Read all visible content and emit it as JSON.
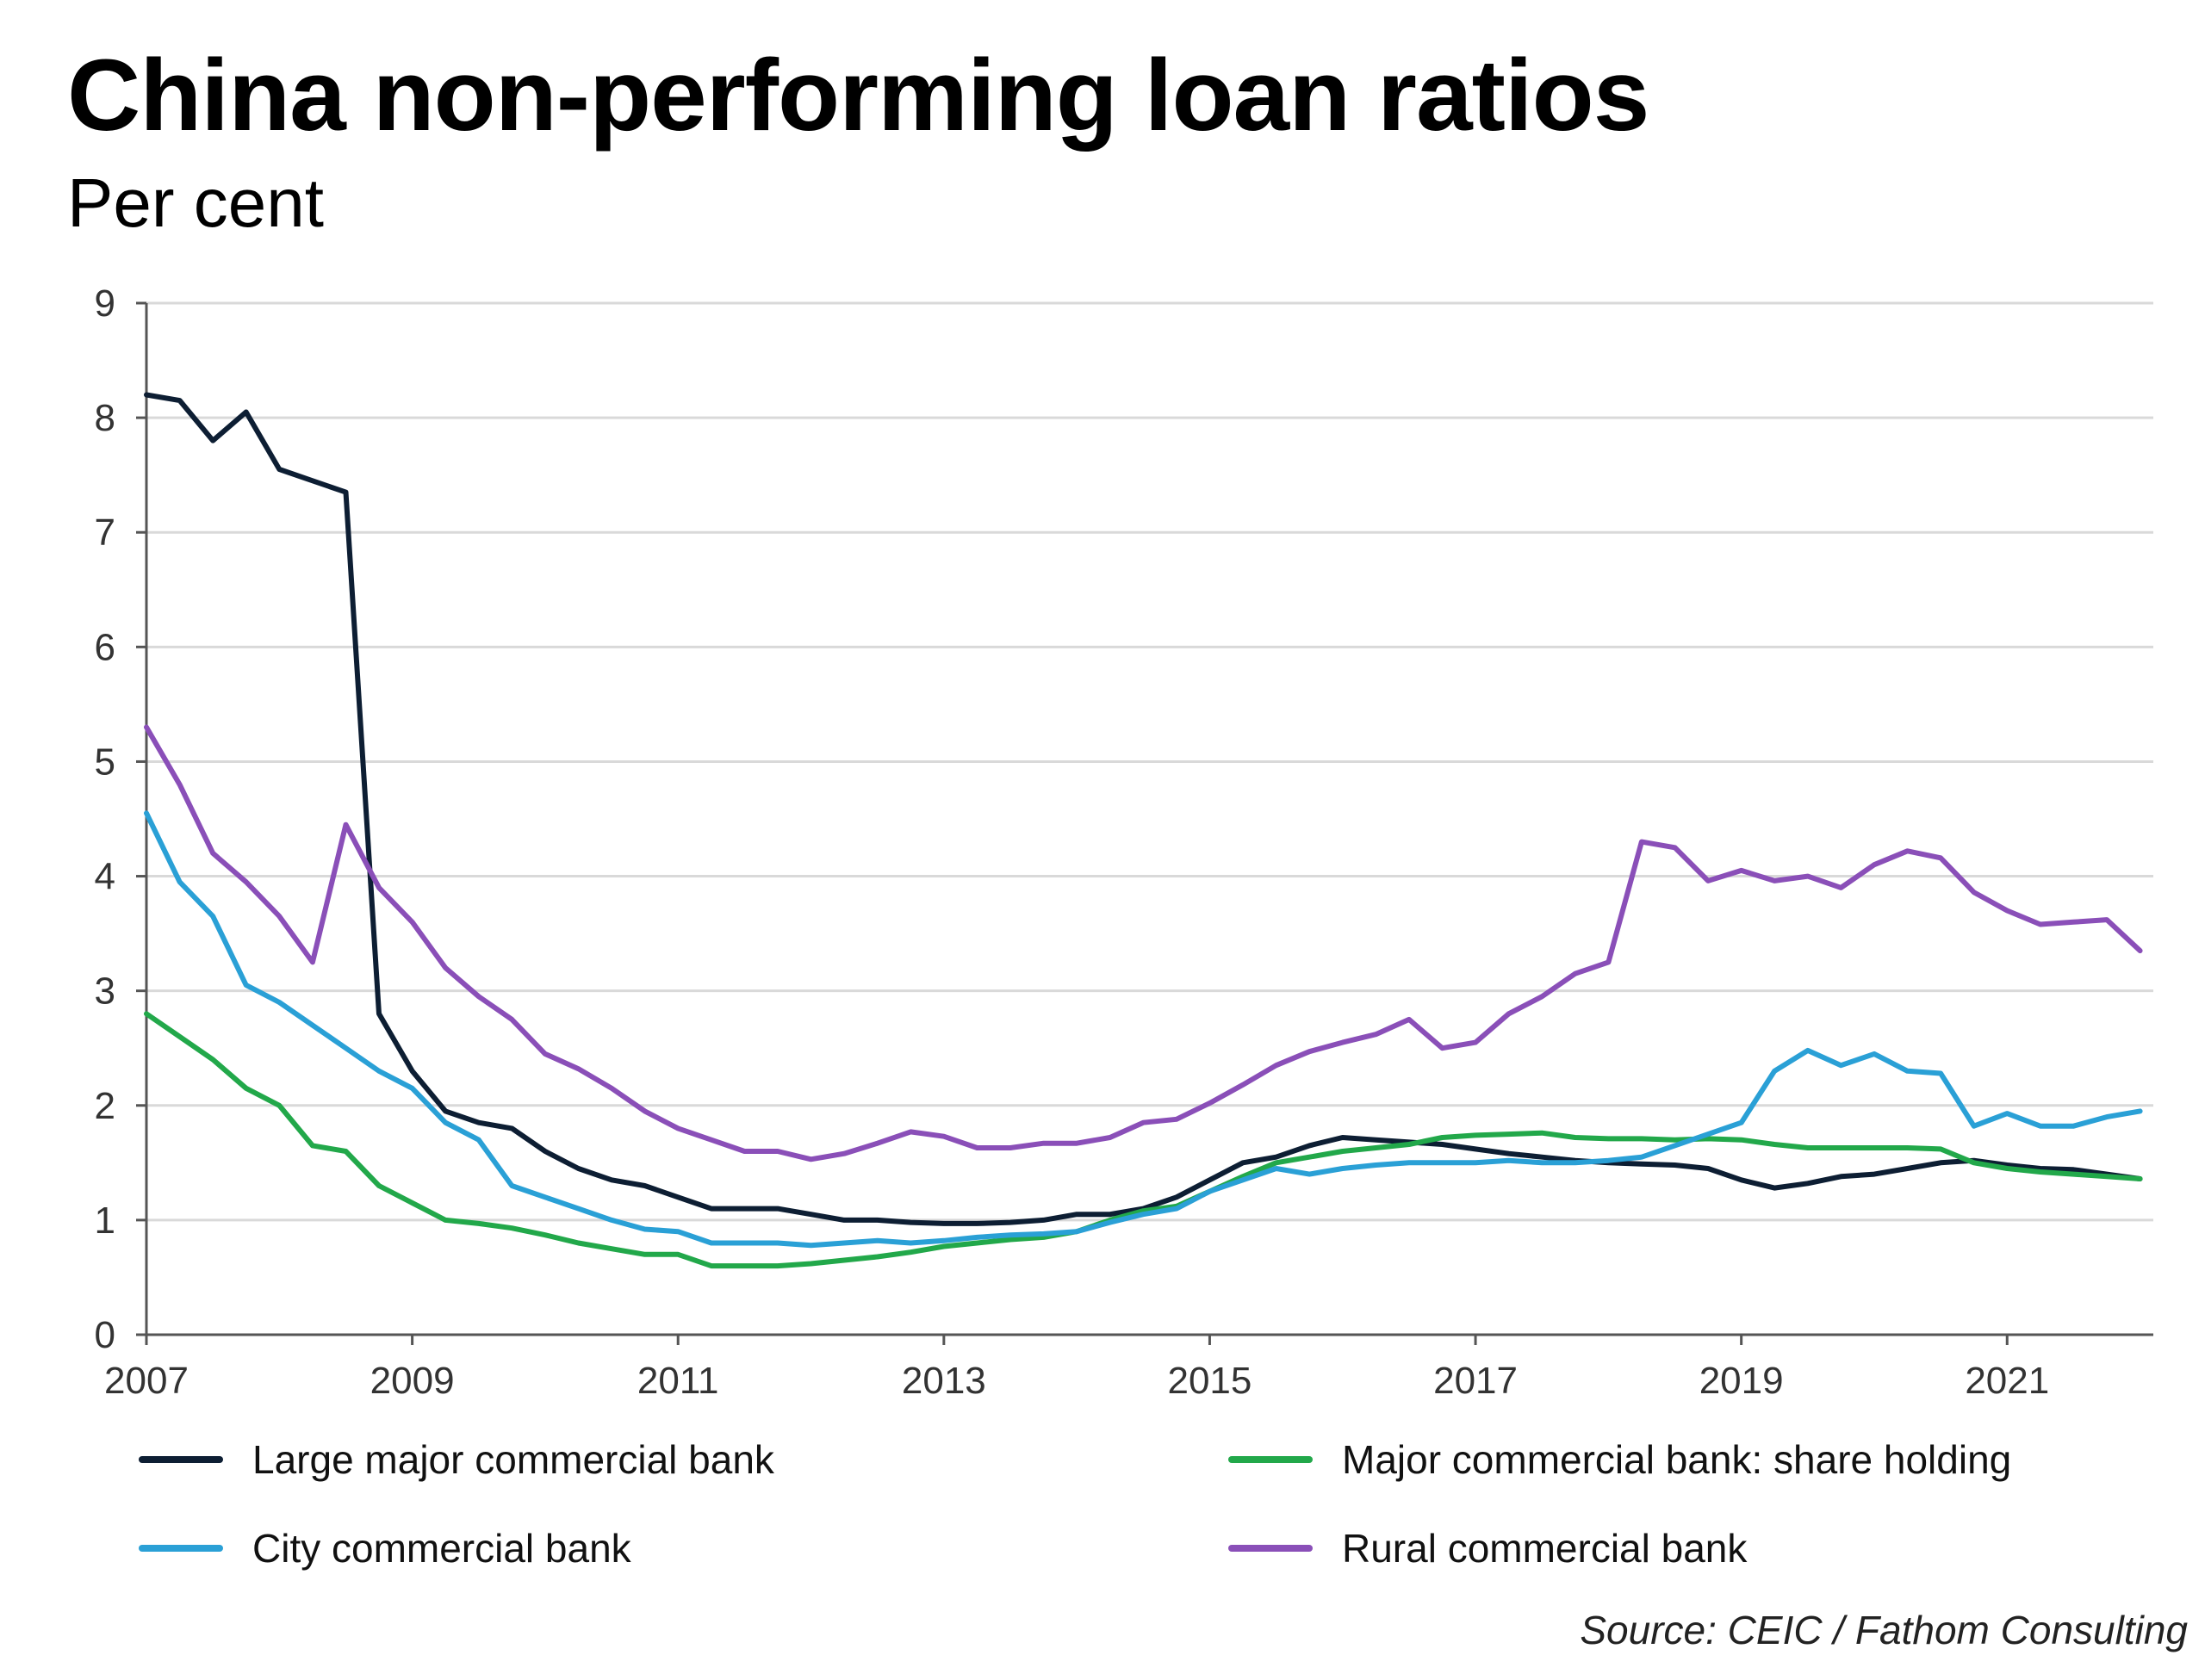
{
  "chart_data": {
    "type": "line",
    "title": "China non-performing loan ratios",
    "subtitle": "Per cent",
    "source": "Source: CEIC / Fathom Consulting",
    "xlabel": "",
    "ylabel": "",
    "xlim": [
      2007,
      2022.1
    ],
    "ylim": [
      0,
      9
    ],
    "y_ticks": [
      "0",
      "1",
      "2",
      "3",
      "4",
      "5",
      "6",
      "7",
      "8",
      "9"
    ],
    "x_ticks": [
      "2007",
      "2009",
      "2011",
      "2013",
      "2015",
      "2017",
      "2019",
      "2021"
    ],
    "grid": "horizontal",
    "legend_position": "bottom",
    "x": [
      2007.0,
      2007.25,
      2007.5,
      2007.75,
      2008.0,
      2008.25,
      2008.5,
      2008.75,
      2009.0,
      2009.25,
      2009.5,
      2009.75,
      2010.0,
      2010.25,
      2010.5,
      2010.75,
      2011.0,
      2011.25,
      2011.5,
      2011.75,
      2012.0,
      2012.25,
      2012.5,
      2012.75,
      2013.0,
      2013.25,
      2013.5,
      2013.75,
      2014.0,
      2014.25,
      2014.5,
      2014.75,
      2015.0,
      2015.25,
      2015.5,
      2015.75,
      2016.0,
      2016.25,
      2016.5,
      2016.75,
      2017.0,
      2017.25,
      2017.5,
      2017.75,
      2018.0,
      2018.25,
      2018.5,
      2018.75,
      2019.0,
      2019.25,
      2019.5,
      2019.75,
      2020.0,
      2020.25,
      2020.5,
      2020.75,
      2021.0,
      2021.25,
      2021.5,
      2021.75,
      2022.0
    ],
    "series": [
      {
        "name": "Large major commercial bank",
        "color": "#0d1e33",
        "values": [
          8.2,
          8.15,
          7.8,
          8.05,
          7.55,
          7.45,
          7.35,
          2.8,
          2.3,
          1.95,
          1.85,
          1.8,
          1.6,
          1.45,
          1.35,
          1.3,
          1.2,
          1.1,
          1.1,
          1.1,
          1.05,
          1.0,
          1.0,
          0.98,
          0.97,
          0.97,
          0.98,
          1.0,
          1.05,
          1.05,
          1.1,
          1.2,
          1.35,
          1.5,
          1.55,
          1.65,
          1.72,
          1.7,
          1.68,
          1.66,
          1.62,
          1.58,
          1.55,
          1.52,
          1.5,
          1.49,
          1.48,
          1.45,
          1.35,
          1.28,
          1.32,
          1.38,
          1.4,
          1.45,
          1.5,
          1.52,
          1.48,
          1.45,
          1.44,
          1.4,
          1.36
        ]
      },
      {
        "name": "Major commercial bank: share holding",
        "color": "#22a84a",
        "values": [
          2.8,
          2.6,
          2.4,
          2.15,
          2.0,
          1.65,
          1.6,
          1.3,
          1.15,
          1.0,
          0.97,
          0.93,
          0.87,
          0.8,
          0.75,
          0.7,
          0.7,
          0.6,
          0.6,
          0.6,
          0.62,
          0.65,
          0.68,
          0.72,
          0.77,
          0.8,
          0.83,
          0.85,
          0.9,
          1.0,
          1.08,
          1.12,
          1.25,
          1.38,
          1.5,
          1.55,
          1.6,
          1.63,
          1.66,
          1.72,
          1.74,
          1.75,
          1.76,
          1.72,
          1.71,
          1.71,
          1.7,
          1.71,
          1.7,
          1.66,
          1.63,
          1.63,
          1.63,
          1.63,
          1.62,
          1.5,
          1.45,
          1.42,
          1.4,
          1.38,
          1.36
        ]
      },
      {
        "name": "City commercial bank",
        "color": "#2aa0d6",
        "values": [
          4.55,
          3.95,
          3.65,
          3.05,
          2.9,
          2.7,
          2.5,
          2.3,
          2.15,
          1.85,
          1.7,
          1.3,
          1.2,
          1.1,
          1.0,
          0.92,
          0.9,
          0.8,
          0.8,
          0.8,
          0.78,
          0.8,
          0.82,
          0.8,
          0.82,
          0.85,
          0.87,
          0.88,
          0.9,
          0.98,
          1.05,
          1.1,
          1.25,
          1.35,
          1.45,
          1.4,
          1.45,
          1.48,
          1.5,
          1.5,
          1.5,
          1.52,
          1.5,
          1.5,
          1.52,
          1.55,
          1.65,
          1.75,
          1.85,
          2.3,
          2.48,
          2.35,
          2.45,
          2.3,
          2.28,
          1.82,
          1.93,
          1.82,
          1.82,
          1.9,
          1.95
        ]
      },
      {
        "name": "Rural commercial bank",
        "color": "#8a4fb8",
        "values": [
          5.3,
          4.8,
          4.2,
          3.95,
          3.65,
          3.25,
          4.45,
          3.9,
          3.6,
          3.2,
          2.95,
          2.75,
          2.45,
          2.32,
          2.15,
          1.95,
          1.8,
          1.7,
          1.6,
          1.6,
          1.53,
          1.58,
          1.67,
          1.77,
          1.73,
          1.63,
          1.63,
          1.67,
          1.67,
          1.72,
          1.85,
          1.88,
          2.02,
          2.18,
          2.35,
          2.47,
          2.55,
          2.62,
          2.75,
          2.5,
          2.55,
          2.8,
          2.95,
          3.15,
          3.25,
          4.3,
          4.25,
          3.96,
          4.05,
          3.96,
          4.0,
          3.9,
          4.1,
          4.22,
          4.16,
          3.86,
          3.7,
          3.58,
          3.6,
          3.62,
          3.35
        ]
      }
    ]
  }
}
